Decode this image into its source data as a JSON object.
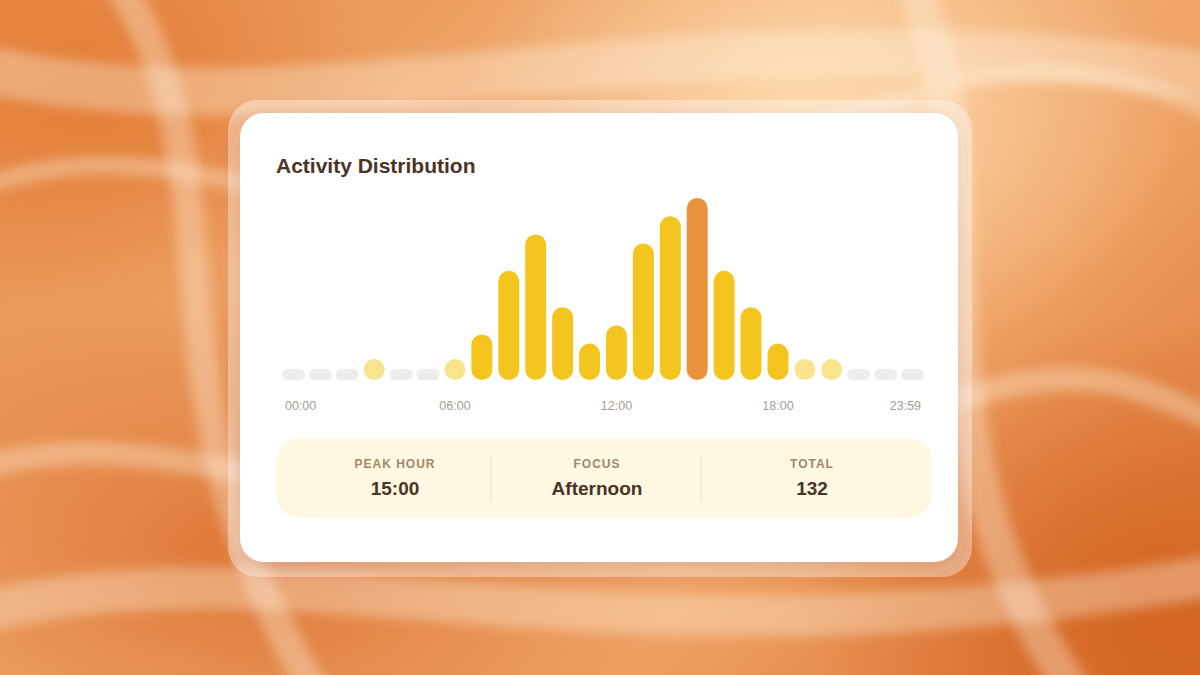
{
  "chart_data": {
    "type": "bar",
    "title": "Activity Distribution",
    "categories": [
      "00:00",
      null,
      null,
      null,
      null,
      null,
      "06:00",
      null,
      null,
      null,
      null,
      null,
      "12:00",
      null,
      null,
      null,
      null,
      null,
      "18:00",
      null,
      null,
      null,
      null,
      "23:59"
    ],
    "values": [
      0,
      0,
      0,
      1,
      0,
      0,
      1,
      5,
      12,
      16,
      8,
      4,
      6,
      15,
      18,
      20,
      12,
      8,
      4,
      1,
      1,
      0,
      0,
      0
    ],
    "colors": [
      "#ededed",
      "#ededed",
      "#ededed",
      "#f8e48c",
      "#ededed",
      "#ededed",
      "#f8e48c",
      "#f4c41f",
      "#f4c41f",
      "#f4c41f",
      "#f4c41f",
      "#f4c41f",
      "#f4c41f",
      "#f4c41f",
      "#f4c41f",
      "#e8923e",
      "#f4c41f",
      "#f4c41f",
      "#f4c41f",
      "#f8e48c",
      "#f8e48c",
      "#ededed",
      "#ededed",
      "#ededed"
    ],
    "ylim": [
      0,
      20
    ],
    "tick_labels": "x"
  },
  "stats": [
    {
      "label": "PEAK HOUR",
      "value": "15:00"
    },
    {
      "label": "FOCUS",
      "value": "Afternoon"
    },
    {
      "label": "TOTAL",
      "value": 132
    }
  ]
}
